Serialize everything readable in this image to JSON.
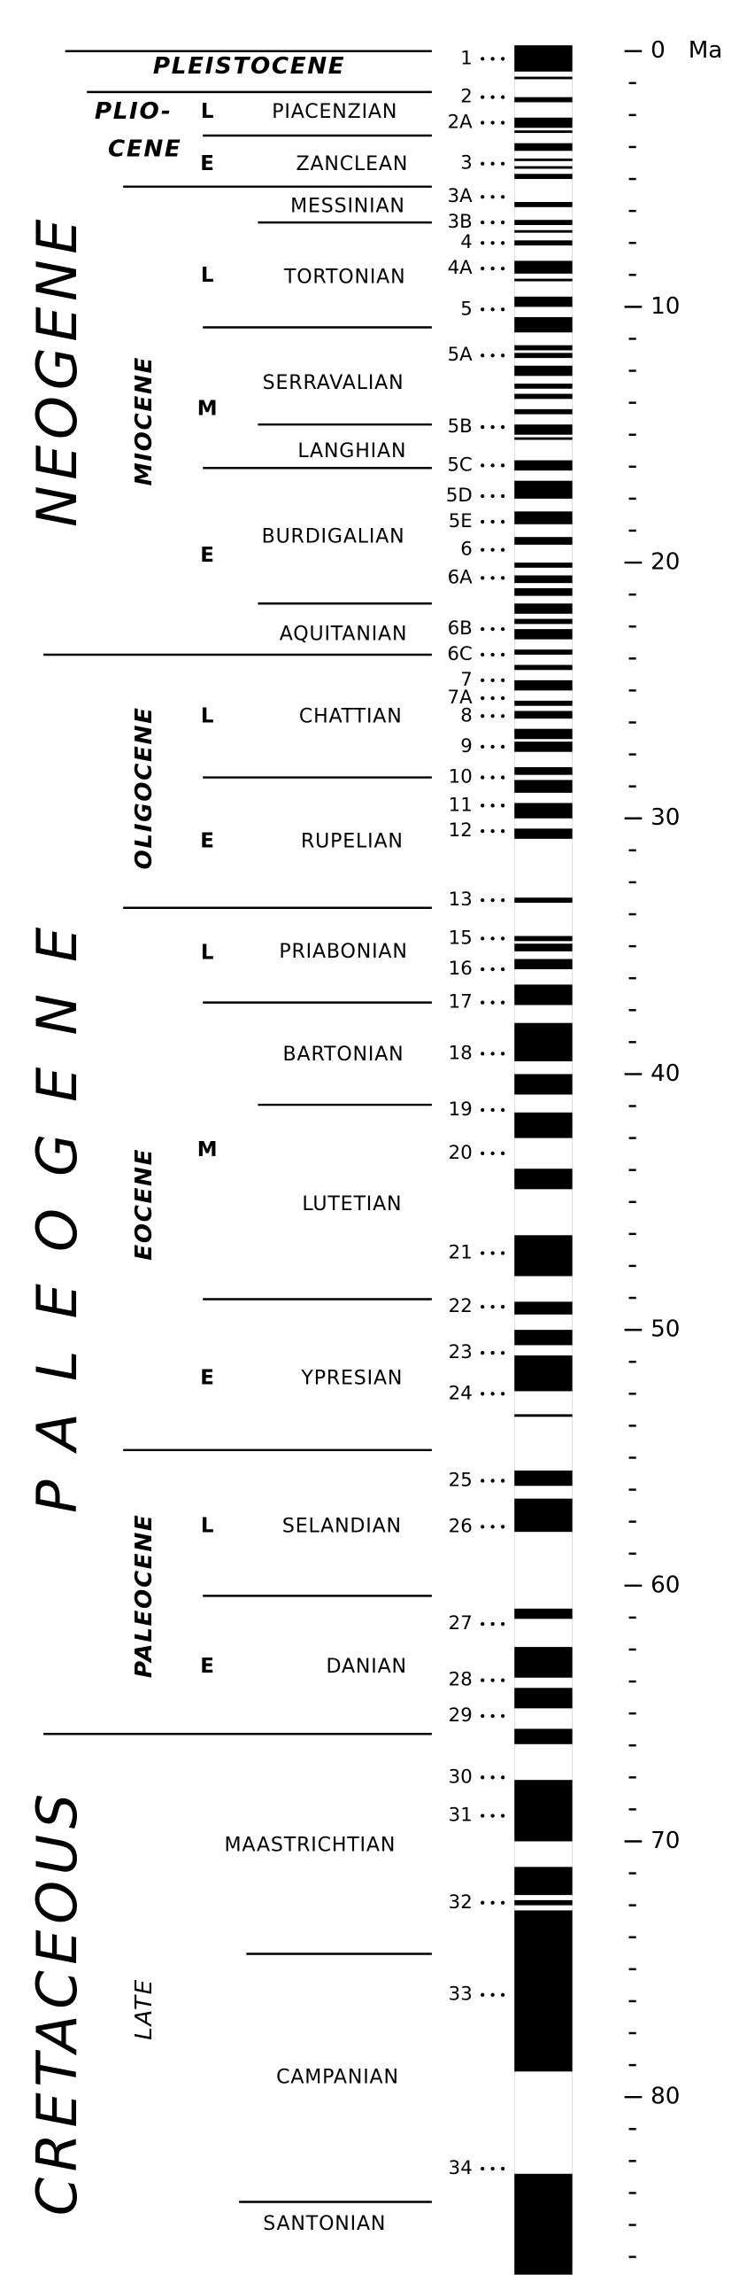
{
  "periods": [
    "NEOGENE",
    "PALEOGENE",
    "CRETACEOUS"
  ],
  "epochs": [
    "PLEISTOCENE",
    "PLIO-",
    "CENE",
    "MIOCENE",
    "OLIGOCENE",
    "EOCENE",
    "PALEOCENE",
    "LATE"
  ],
  "subepochs": [
    "L",
    "E",
    "L",
    "M",
    "E",
    "L",
    "E",
    "L",
    "M",
    "E",
    "L",
    "E"
  ],
  "stages": [
    "PIACENZIAN",
    "ZANCLEAN",
    "MESSINIAN",
    "TORTONIAN",
    "SERRAVALIAN",
    "LANGHIAN",
    "BURDIGALIAN",
    "AQUITANIAN",
    "CHATTIAN",
    "RUPELIAN",
    "PRIABONIAN",
    "BARTONIAN",
    "LUTETIAN",
    "YPRESIAN",
    "SELANDIAN",
    "DANIAN",
    "MAASTRICHTIAN",
    "CAMPANIAN",
    "SANTONIAN"
  ],
  "boundaries": [
    0,
    1.6,
    3.3,
    5.3,
    6.7,
    10.8,
    14.6,
    16.3,
    21.6,
    23.6,
    28.4,
    33.5,
    37.2,
    41.2,
    48.8,
    54.7,
    60.4,
    65.8,
    74.4,
    84.1
  ],
  "chrons": [
    {
      "label": "1",
      "age": 0.3
    },
    {
      "label": "2",
      "age": 1.8
    },
    {
      "label": "2A",
      "age": 2.8
    },
    {
      "label": "3",
      "age": 4.4
    },
    {
      "label": "3A",
      "age": 5.7
    },
    {
      "label": "3B",
      "age": 6.7
    },
    {
      "label": "4",
      "age": 7.5
    },
    {
      "label": "4A",
      "age": 8.5
    },
    {
      "label": "5",
      "age": 10.1
    },
    {
      "label": "5A",
      "age": 11.9
    },
    {
      "label": "5B",
      "age": 14.7
    },
    {
      "label": "5C",
      "age": 16.2
    },
    {
      "label": "5D",
      "age": 17.4
    },
    {
      "label": "5E",
      "age": 18.4
    },
    {
      "label": "6",
      "age": 19.5
    },
    {
      "label": "6A",
      "age": 20.6
    },
    {
      "label": "6B",
      "age": 22.6
    },
    {
      "label": "6C",
      "age": 23.6
    },
    {
      "label": "7",
      "age": 24.6
    },
    {
      "label": "7A",
      "age": 25.3
    },
    {
      "label": "8",
      "age": 26.0
    },
    {
      "label": "9",
      "age": 27.2
    },
    {
      "label": "10",
      "age": 28.4
    },
    {
      "label": "11",
      "age": 29.5
    },
    {
      "label": "12",
      "age": 30.5
    },
    {
      "label": "13",
      "age": 33.2
    },
    {
      "label": "15",
      "age": 34.7
    },
    {
      "label": "16",
      "age": 35.9
    },
    {
      "label": "17",
      "age": 37.2
    },
    {
      "label": "18",
      "age": 39.2
    },
    {
      "label": "19",
      "age": 41.4
    },
    {
      "label": "20",
      "age": 43.1
    },
    {
      "label": "21",
      "age": 47.0
    },
    {
      "label": "22",
      "age": 49.1
    },
    {
      "label": "23",
      "age": 50.9
    },
    {
      "label": "24",
      "age": 52.5
    },
    {
      "label": "25",
      "age": 55.9
    },
    {
      "label": "26",
      "age": 57.7
    },
    {
      "label": "27",
      "age": 61.5
    },
    {
      "label": "28",
      "age": 63.7
    },
    {
      "label": "29",
      "age": 65.1
    },
    {
      "label": "30",
      "age": 67.5
    },
    {
      "label": "31",
      "age": 69.0
    },
    {
      "label": "32",
      "age": 72.4
    },
    {
      "label": "33",
      "age": 76.0
    },
    {
      "label": "34",
      "age": 82.8
    }
  ],
  "polarity_reversed": [
    [
      0.8,
      1.0
    ],
    [
      1.1,
      1.8
    ],
    [
      2.0,
      2.6
    ],
    [
      3.0,
      3.1
    ],
    [
      3.2,
      3.6
    ],
    [
      3.9,
      4.2
    ],
    [
      4.3,
      4.5
    ],
    [
      4.6,
      4.8
    ],
    [
      5.0,
      5.9
    ],
    [
      6.1,
      6.6
    ],
    [
      6.8,
      7.0
    ],
    [
      7.1,
      7.4
    ],
    [
      7.6,
      8.2
    ],
    [
      8.7,
      8.9
    ],
    [
      9.0,
      9.6
    ],
    [
      10.0,
      10.4
    ],
    [
      11.0,
      11.5
    ],
    [
      11.7,
      11.8
    ],
    [
      12.0,
      12.3
    ],
    [
      12.7,
      13.0
    ],
    [
      13.2,
      13.4
    ],
    [
      13.6,
      14.0
    ],
    [
      14.2,
      14.6
    ],
    [
      15.0,
      15.1
    ],
    [
      15.2,
      16.0
    ],
    [
      16.4,
      16.8
    ],
    [
      17.5,
      18.0
    ],
    [
      18.5,
      19.0
    ],
    [
      19.3,
      20.0
    ],
    [
      20.2,
      20.5
    ],
    [
      20.8,
      21.0
    ],
    [
      21.3,
      21.6
    ],
    [
      22.0,
      22.2
    ],
    [
      22.4,
      22.6
    ],
    [
      23.0,
      23.4
    ],
    [
      23.6,
      24.0
    ],
    [
      24.2,
      24.6
    ],
    [
      25.0,
      25.4
    ],
    [
      25.6,
      25.8
    ],
    [
      26.1,
      26.5
    ],
    [
      26.9,
      27.0
    ],
    [
      27.4,
      28.0
    ],
    [
      28.3,
      28.5
    ],
    [
      29.0,
      29.4
    ],
    [
      30.0,
      30.4
    ],
    [
      30.8,
      33.1
    ],
    [
      33.3,
      34.6
    ],
    [
      34.8,
      34.9
    ],
    [
      35.2,
      35.5
    ],
    [
      35.9,
      36.5
    ],
    [
      37.3,
      38.0
    ],
    [
      39.5,
      40.0
    ],
    [
      40.8,
      41.5
    ],
    [
      42.5,
      43.7
    ],
    [
      44.5,
      46.3
    ],
    [
      47.9,
      48.9
    ],
    [
      49.4,
      50.0
    ],
    [
      50.6,
      51.0
    ],
    [
      52.4,
      53.3
    ],
    [
      53.4,
      55.5
    ],
    [
      56.1,
      56.6
    ],
    [
      57.9,
      60.9
    ],
    [
      61.3,
      62.4
    ],
    [
      63.6,
      64.0
    ],
    [
      64.8,
      65.6
    ],
    [
      66.2,
      67.6
    ],
    [
      70.0,
      71.0
    ],
    [
      72.1,
      72.3
    ],
    [
      72.5,
      72.7
    ],
    [
      79.0,
      83.0
    ]
  ],
  "axis": {
    "label": "Ma",
    "ylim": [
      0,
      87
    ],
    "ticks": [
      0,
      10,
      20,
      30,
      40,
      50,
      60,
      70,
      80
    ],
    "minor_ticks": [
      1.25,
      2.5,
      3.75,
      5,
      6.25,
      7.5,
      8.75,
      11.25,
      12.5,
      13.75,
      15,
      16.25,
      17.5,
      18.75,
      21.25,
      22.5,
      23.75,
      25,
      26.25,
      27.5,
      28.75,
      31.25,
      32.5,
      33.75,
      35,
      36.25,
      37.5,
      38.75,
      41.25,
      42.5,
      43.75,
      45,
      46.25,
      47.5,
      48.75,
      51.25,
      52.5,
      53.75,
      55,
      56.25,
      57.5,
      58.75,
      61.25,
      62.5,
      63.75,
      65,
      66.25,
      67.5,
      68.75,
      71.25,
      72.5,
      73.75,
      75,
      76.25,
      77.5,
      78.75,
      81.25,
      82.5,
      83.75,
      85,
      86.25
    ]
  }
}
